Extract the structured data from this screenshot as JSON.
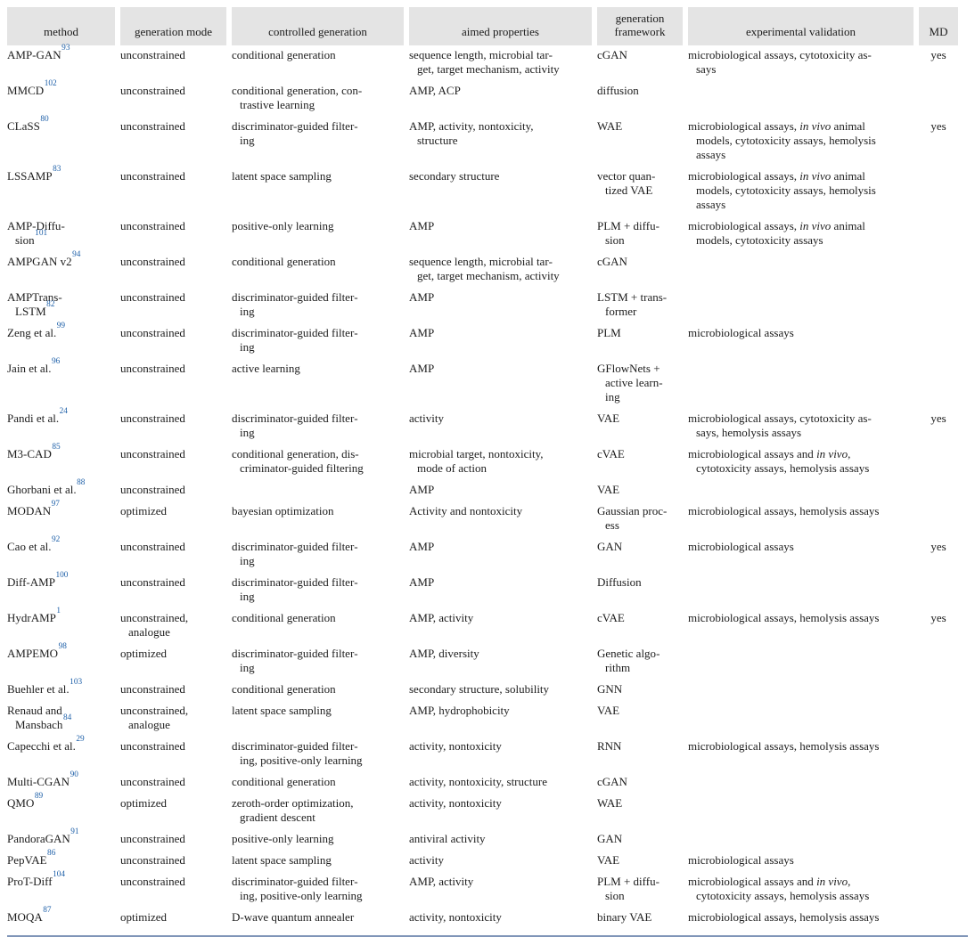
{
  "page": {
    "colors": {
      "bg": "#ffffff",
      "text": "#1c1c1c",
      "headerbg": "#e4e4e4",
      "ref": "#1d5fa8",
      "rule": "#8095b8"
    }
  },
  "table": {
    "columns": [
      {
        "key": "method",
        "label": "method"
      },
      {
        "key": "mode",
        "label": "generation mode"
      },
      {
        "key": "controlled",
        "label": "controlled generation"
      },
      {
        "key": "properties",
        "label": "aimed properties"
      },
      {
        "key": "framework",
        "label": "generation framework"
      },
      {
        "key": "validation",
        "label": "experimental validation"
      },
      {
        "key": "md",
        "label": "MD"
      }
    ],
    "rows": [
      {
        "method": "AMP-GAN",
        "ref": "93",
        "mode": "unconstrained",
        "controlled": "conditional generation",
        "properties": "sequence length, microbial tar­get, target mechanism, activity",
        "framework": "cGAN",
        "validation": "microbiological assays, cytotoxicity as­says",
        "md": "yes"
      },
      {
        "method": "MMCD",
        "ref": "102",
        "mode": "unconstrained",
        "controlled": "conditional generation, con­trastive learning",
        "properties": "AMP, ACP",
        "framework": "diffusion",
        "validation": "",
        "md": ""
      },
      {
        "method": "CLaSS",
        "ref": "80",
        "mode": "unconstrained",
        "controlled": "discriminator-guided filter­ing",
        "properties": "AMP, activity, nontoxicity, structure",
        "framework": "WAE",
        "validation": "microbiological assays, *in vivo* animal models, cytotoxicity assays, hemolysis assays",
        "md": "yes"
      },
      {
        "method": "LSSAMP",
        "ref": "83",
        "mode": "unconstrained",
        "controlled": "latent space sampling",
        "properties": "secondary structure",
        "framework": "vector quan­tized VAE",
        "validation": "microbiological assays, *in vivo* animal models, cytotoxicity assays, hemolysis assays",
        "md": ""
      },
      {
        "method": "AMP-Diffu­sion",
        "ref": "101",
        "mode": "unconstrained",
        "controlled": "positive-only learning",
        "properties": "AMP",
        "framework": "PLM + diffu­sion",
        "validation": "microbiological assays, *in vivo* animal models, cytotoxicity assays",
        "md": ""
      },
      {
        "method": "AMPGAN v2",
        "ref": "94",
        "mode": "unconstrained",
        "controlled": "conditional generation",
        "properties": "sequence length, microbial tar­get, target mechanism, activity",
        "framework": "cGAN",
        "validation": "",
        "md": ""
      },
      {
        "method": "AMPTrans-LSTM",
        "ref": "82",
        "mode": "unconstrained",
        "controlled": "discriminator-guided filter­ing",
        "properties": "AMP",
        "framework": "LSTM + trans­former",
        "validation": "",
        "md": ""
      },
      {
        "method": "Zeng et al.",
        "ref": "99",
        "mode": "unconstrained",
        "controlled": "discriminator-guided filter­ing",
        "properties": "AMP",
        "framework": "PLM",
        "validation": "microbiological assays",
        "md": ""
      },
      {
        "method": "Jain et al.",
        "ref": "96",
        "mode": "unconstrained",
        "controlled": "active learning",
        "properties": "AMP",
        "framework": "GFlowNets + active learn­ing",
        "validation": "",
        "md": ""
      },
      {
        "method": "Pandi et al.",
        "ref": "24",
        "mode": "unconstrained",
        "controlled": "discriminator-guided filter­ing",
        "properties": "activity",
        "framework": "VAE",
        "validation": "microbiological assays, cytotoxicity as­says, hemolysis assays",
        "md": "yes"
      },
      {
        "method": "M3-CAD",
        "ref": "85",
        "mode": "unconstrained",
        "controlled": "conditional generation, dis­criminator-guided filtering",
        "properties": "microbial target, nontoxicity, mode of action",
        "framework": "cVAE",
        "validation": "microbiological assays and *in vivo*, cytotoxicity assays, hemolysis assays",
        "md": ""
      },
      {
        "method": "Ghorbani et al.",
        "ref": "88",
        "mode": "unconstrained",
        "controlled": "",
        "properties": "AMP",
        "framework": "VAE",
        "validation": "",
        "md": ""
      },
      {
        "method": "MODAN",
        "ref": "97",
        "mode": "optimized",
        "controlled": "bayesian optimization",
        "properties": "Activity and nontoxicity",
        "framework": "Gaussian proc­ess",
        "validation": "microbiological assays, hemolysis assays",
        "md": ""
      },
      {
        "method": "Cao et al.",
        "ref": "92",
        "mode": "unconstrained",
        "controlled": "discriminator-guided filter­ing",
        "properties": "AMP",
        "framework": "GAN",
        "validation": "microbiological assays",
        "md": "yes"
      },
      {
        "method": "Diff-AMP",
        "ref": "100",
        "mode": "unconstrained",
        "controlled": "discriminator-guided filter­ing",
        "properties": "AMP",
        "framework": "Diffusion",
        "validation": "",
        "md": ""
      },
      {
        "method": "HydrAMP",
        "ref": "1",
        "mode": "unconstrained, analogue",
        "controlled": "conditional generation",
        "properties": "AMP, activity",
        "framework": "cVAE",
        "validation": "microbiological assays, hemolysis assays",
        "md": "yes"
      },
      {
        "method": "AMPEMO",
        "ref": "98",
        "mode": "optimized",
        "controlled": "discriminator-guided filter­ing",
        "properties": "AMP, diversity",
        "framework": "Genetic algo­rithm",
        "validation": "",
        "md": ""
      },
      {
        "method": "Buehler et al.",
        "ref": "103",
        "mode": "unconstrained",
        "controlled": "conditional generation",
        "properties": "secondary structure, solubility",
        "framework": "GNN",
        "validation": "",
        "md": ""
      },
      {
        "method": "Renaud and Mansbach",
        "ref": "84",
        "mode": "unconstrained, analogue",
        "controlled": "latent space sampling",
        "properties": "AMP, hydrophobicity",
        "framework": "VAE",
        "validation": "",
        "md": ""
      },
      {
        "method": "Capecchi et al.",
        "ref": "29",
        "mode": "unconstrained",
        "controlled": "discriminator-guided filter­ing, positive-only learning",
        "properties": "activity, nontoxicity",
        "framework": "RNN",
        "validation": "microbiological assays, hemolysis assays",
        "md": ""
      },
      {
        "method": "Multi-CGAN",
        "ref": "90",
        "mode": "unconstrained",
        "controlled": "conditional generation",
        "properties": "activity, nontoxicity, structure",
        "framework": "cGAN",
        "validation": "",
        "md": ""
      },
      {
        "method": "QMO",
        "ref": "89",
        "mode": "optimized",
        "controlled": "zeroth-order optimization, gradient descent",
        "properties": "activity, nontoxicity",
        "framework": "WAE",
        "validation": "",
        "md": ""
      },
      {
        "method": "PandoraGAN",
        "ref": "91",
        "mode": "unconstrained",
        "controlled": "positive-only learning",
        "properties": "antiviral activity",
        "framework": "GAN",
        "validation": "",
        "md": ""
      },
      {
        "method": "PepVAE",
        "ref": "86",
        "mode": "unconstrained",
        "controlled": "latent space sampling",
        "properties": "activity",
        "framework": "VAE",
        "validation": "microbiological assays",
        "md": ""
      },
      {
        "method": "ProT-Diff",
        "ref": "104",
        "mode": "unconstrained",
        "controlled": "discriminator-guided filter­ing, positive-only learning",
        "properties": "AMP, activity",
        "framework": "PLM + diffu­sion",
        "validation": "microbiological assays and *in vivo*, cytotoxicity assays, hemolysis assays",
        "md": ""
      },
      {
        "method": "MOQA",
        "ref": "87",
        "mode": "optimized",
        "controlled": "D-wave quantum annealer",
        "properties": "activity, nontoxicity",
        "framework": "binary VAE",
        "validation": "microbiological assays, hemolysis assays",
        "md": ""
      }
    ]
  }
}
